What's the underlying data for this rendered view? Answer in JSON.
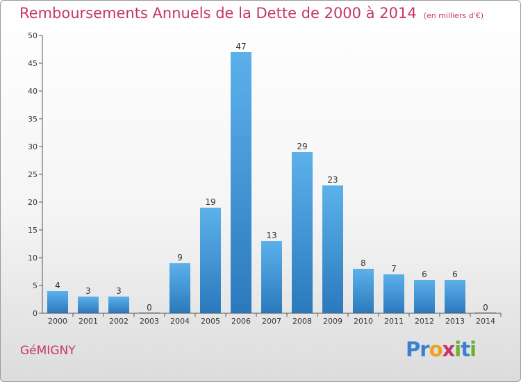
{
  "title": "Remboursements Annuels de la Dette de 2000 à 2014",
  "unit_note": "(en milliers d'€)",
  "commune": "GéMIGNY",
  "logo": {
    "letters": [
      "P",
      "r",
      "o",
      "x",
      "i",
      "t",
      "i"
    ],
    "colors": [
      "#3a7fd0",
      "#3a7fd0",
      "#f0a020",
      "#c4356b",
      "#70b030",
      "#3a7fd0",
      "#70b030"
    ]
  },
  "colors": {
    "bar": "#3d96d8",
    "title": "#c4356b",
    "axis": "#555555",
    "grid": "#cccccc"
  },
  "chart_data": {
    "type": "bar",
    "categories": [
      "2000",
      "2001",
      "2002",
      "2003",
      "2004",
      "2005",
      "2006",
      "2007",
      "2008",
      "2009",
      "2010",
      "2011",
      "2012",
      "2013",
      "2014"
    ],
    "values": [
      4,
      3,
      3,
      0,
      9,
      19,
      47,
      13,
      29,
      23,
      8,
      7,
      6,
      6,
      0
    ],
    "ylim": [
      0,
      50
    ],
    "yticks": [
      0,
      5,
      10,
      15,
      20,
      25,
      30,
      35,
      40,
      45,
      50
    ],
    "grid": false,
    "data_labels": true
  }
}
